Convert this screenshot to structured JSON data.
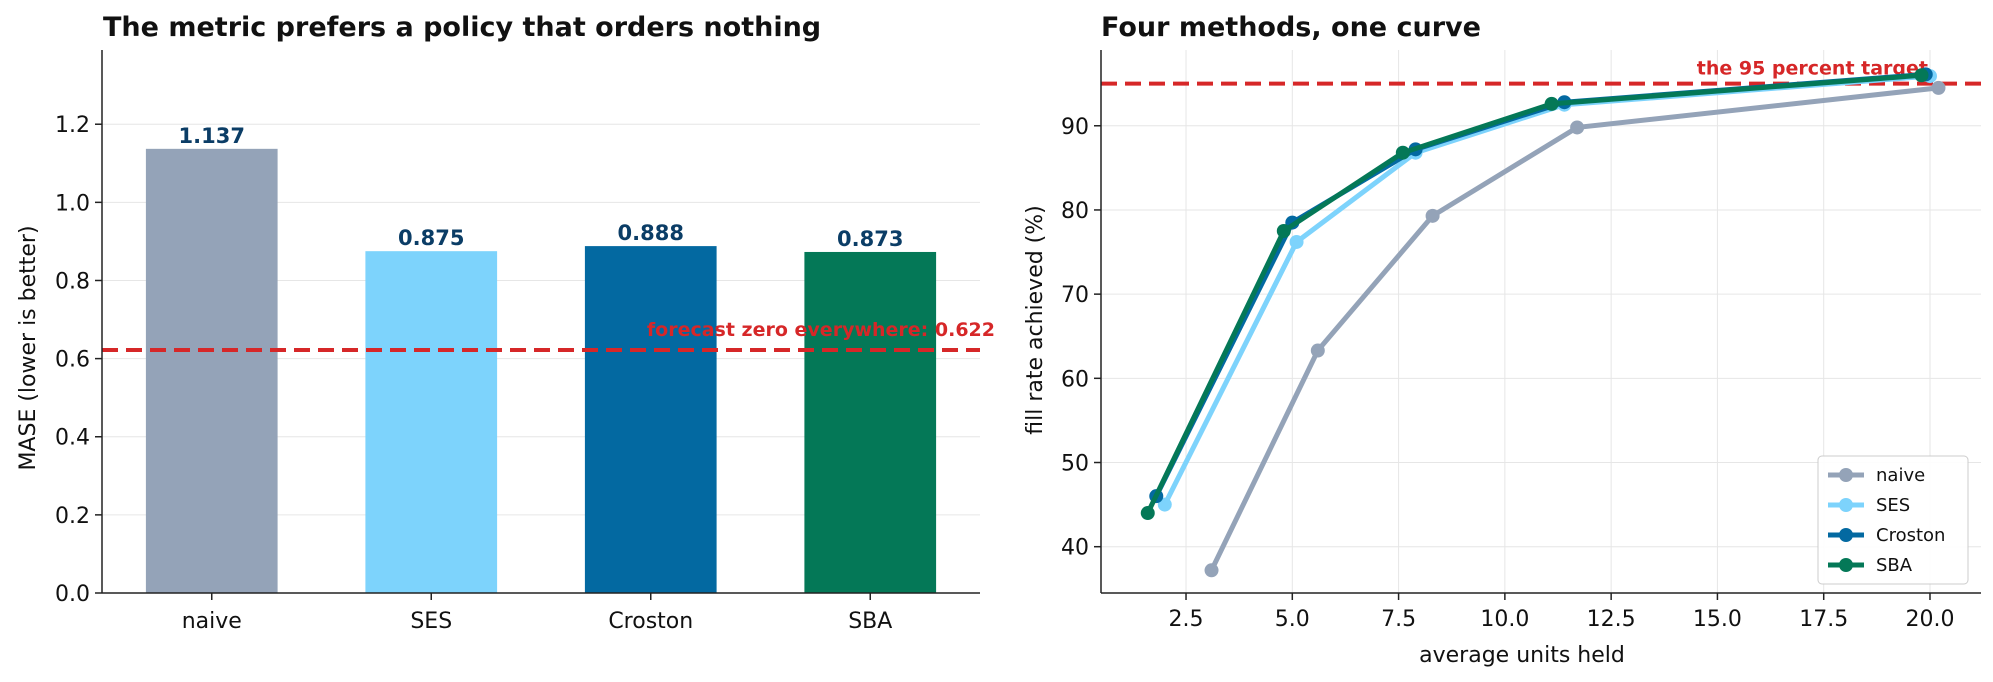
{
  "chart_data": [
    {
      "type": "bar",
      "title": "The metric prefers a policy that orders nothing",
      "xlabel": "",
      "ylabel": "MASE (lower is better)",
      "categories": [
        "naive",
        "SES",
        "Croston",
        "SBA"
      ],
      "values": [
        1.137,
        0.875,
        0.888,
        0.873
      ],
      "value_labels": [
        "1.137",
        "0.875",
        "0.888",
        "0.873"
      ],
      "colors": [
        "#94a3b8",
        "#7dd3fc",
        "#0369a1",
        "#047857"
      ],
      "ylim": [
        0,
        1.39
      ],
      "yticks": [
        0.0,
        0.2,
        0.4,
        0.6,
        0.8,
        1.0,
        1.2
      ],
      "ytick_labels": [
        "0.0",
        "0.2",
        "0.4",
        "0.6",
        "0.8",
        "1.0",
        "1.2"
      ],
      "grid": "horizontal",
      "reference_line": {
        "value": 0.622,
        "label": "forecast zero everywhere: 0.622",
        "color": "#d62728"
      }
    },
    {
      "type": "line",
      "title": "Four methods, one curve",
      "xlabel": "average units held",
      "ylabel": "fill rate achieved (%)",
      "xlim": [
        0.5,
        21.2
      ],
      "ylim": [
        34.5,
        99
      ],
      "xticks": [
        2.5,
        5.0,
        7.5,
        10.0,
        12.5,
        15.0,
        17.5,
        20.0
      ],
      "xtick_labels": [
        "2.5",
        "5.0",
        "7.5",
        "10.0",
        "12.5",
        "15.0",
        "17.5",
        "20.0"
      ],
      "yticks": [
        40,
        50,
        60,
        70,
        80,
        90
      ],
      "ytick_labels": [
        "40",
        "50",
        "60",
        "70",
        "80",
        "90"
      ],
      "grid": "both",
      "legend_position": "lower-right",
      "reference_line": {
        "value": 95,
        "label": "the 95 percent target",
        "color": "#d62728"
      },
      "series": [
        {
          "name": "naive",
          "color": "#94a3b8",
          "x": [
            3.1,
            5.6,
            8.3,
            11.7,
            20.2
          ],
          "y": [
            37.2,
            63.3,
            79.3,
            89.8,
            94.5
          ]
        },
        {
          "name": "SES",
          "color": "#7dd3fc",
          "x": [
            2.0,
            5.1,
            7.9,
            11.4,
            20.0
          ],
          "y": [
            45.0,
            76.2,
            86.8,
            92.5,
            95.9
          ]
        },
        {
          "name": "Croston",
          "color": "#0369a1",
          "x": [
            1.8,
            5.0,
            7.9,
            11.4,
            19.9
          ],
          "y": [
            46.0,
            78.5,
            87.2,
            92.8,
            96.1
          ]
        },
        {
          "name": "SBA",
          "color": "#047857",
          "x": [
            1.6,
            4.8,
            7.6,
            11.1,
            19.8
          ],
          "y": [
            44.0,
            77.5,
            86.8,
            92.6,
            96.0
          ]
        }
      ]
    }
  ]
}
